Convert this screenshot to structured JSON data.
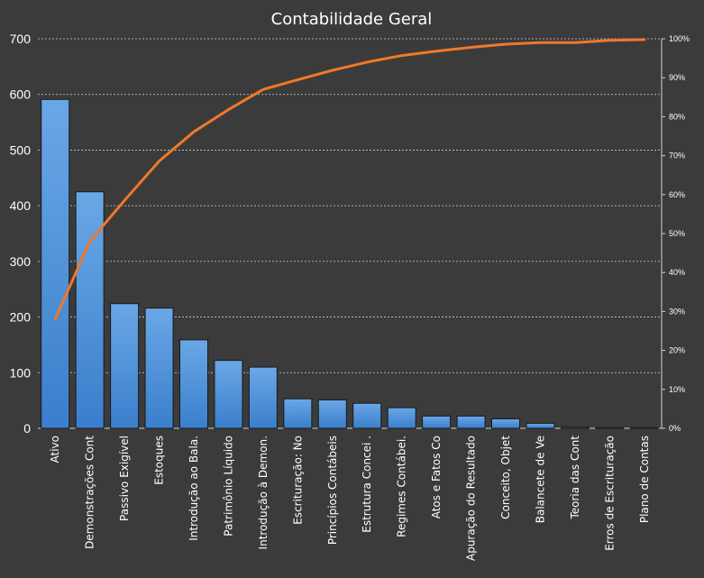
{
  "chart_data": {
    "type": "bar",
    "title": "Contabilidade Geral",
    "categories": [
      "Ativo",
      "Demonstrações Cont",
      "Passivo Exigível",
      "Estoques",
      "Introdução  ao Bala.",
      "Patrimônio Líquido",
      "Introdução à Demon.",
      "Escrituração: No",
      "Princípios Contábeis",
      "Estrutura Concei .",
      "Regimes Contábei.",
      "Atos e Fatos Co",
      "Apuração do Resultado",
      "Conceito, Objet",
      "Balancete de Ve",
      "Teoria das Cont",
      "Erros de Escrituração",
      "Plano de Contas"
    ],
    "series": [
      {
        "type": "bar",
        "axis": "left",
        "values": [
          591,
          425,
          224,
          216,
          159,
          122,
          110,
          53,
          51,
          45,
          37,
          22,
          22,
          17,
          9,
          2,
          1,
          1
        ]
      },
      {
        "type": "line",
        "axis": "right",
        "values": [
          0.28,
          0.48,
          0.585,
          0.686,
          0.761,
          0.818,
          0.87,
          0.895,
          0.919,
          0.94,
          0.957,
          0.968,
          0.978,
          0.986,
          0.99,
          0.99,
          0.996,
          0.998
        ]
      }
    ],
    "y_left": {
      "range": [
        0,
        700
      ],
      "ticks": [
        "0",
        "100",
        "200",
        "300",
        "400",
        "500",
        "600",
        "700"
      ]
    },
    "y_right": {
      "range": [
        0,
        1
      ],
      "ticks": [
        "0%",
        "10%",
        "20%",
        "30%",
        "40%",
        "50%",
        "60%",
        "70%",
        "80%",
        "90%",
        "100%"
      ]
    },
    "grid": true,
    "legend": "none",
    "colors": {
      "background": "#3b3b3b",
      "bar_fill": "#4a8fd8",
      "bar_stroke": "#1a1a1a",
      "line": "#f0782a",
      "grid": "#d0d0d0",
      "text": "#ffffff"
    }
  }
}
